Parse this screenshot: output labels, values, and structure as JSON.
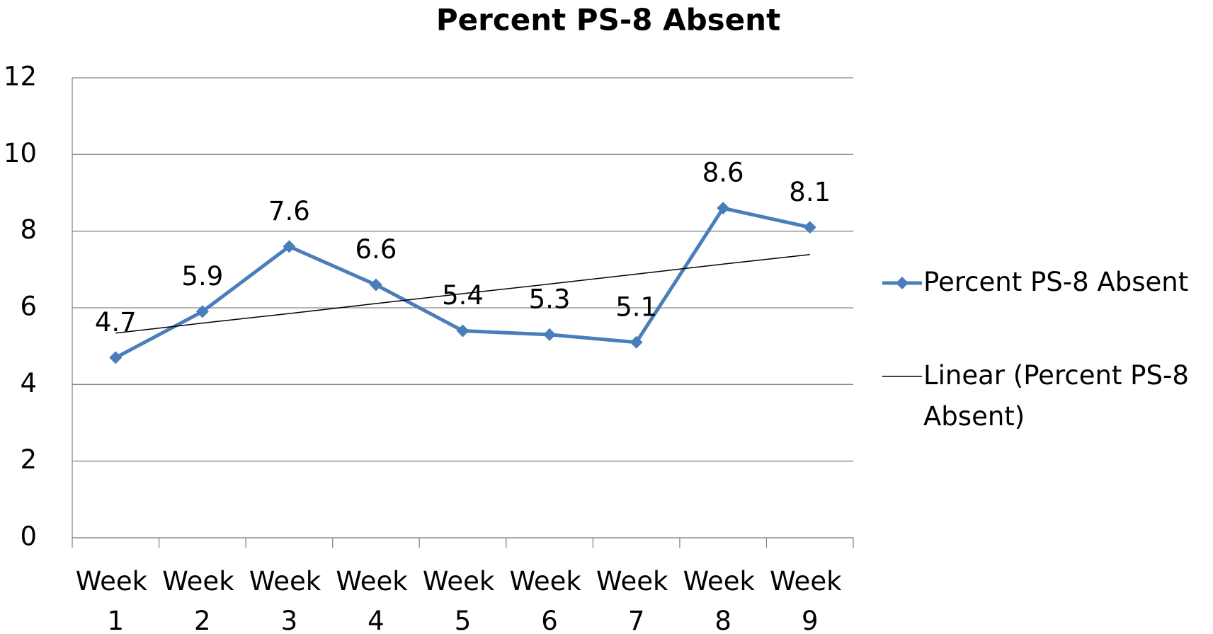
{
  "chart_data": {
    "type": "line",
    "title": "Percent PS-8 Absent",
    "categories": [
      "Week 1",
      "Week 2",
      "Week 3",
      "Week 4",
      "Week 5",
      "Week 6",
      "Week 7",
      "Week 8",
      "Week 9"
    ],
    "series": [
      {
        "name": "Percent PS-8 Absent",
        "color": "#4a7ebb",
        "marker": "diamond",
        "data_labels": true,
        "values": [
          4.7,
          5.9,
          7.6,
          6.6,
          5.4,
          5.3,
          5.1,
          8.6,
          8.1
        ]
      },
      {
        "name": "Linear (Percent PS-8 Absent)",
        "color": "#000000",
        "marker": "none",
        "data_labels": false,
        "values": [
          5.34,
          5.6,
          5.85,
          6.11,
          6.37,
          6.62,
          6.88,
          7.14,
          7.39
        ]
      }
    ],
    "ylim": [
      0,
      12
    ],
    "yticks": [
      0,
      2,
      4,
      6,
      8,
      10,
      12
    ],
    "grid": true,
    "legend": "right"
  }
}
